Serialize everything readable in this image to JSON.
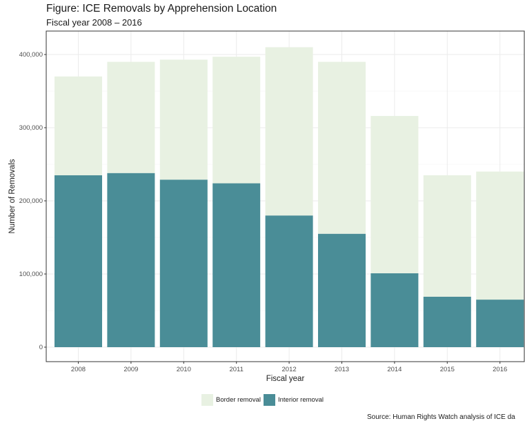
{
  "chart_data": {
    "type": "bar",
    "stacked": true,
    "title": "Figure: ICE Removals by Apprehension Location",
    "subtitle": "Fiscal year 2008 – 2016",
    "xlabel": "Fiscal year",
    "ylabel": "Number of Removals",
    "categories": [
      "2008",
      "2009",
      "2010",
      "2011",
      "2012",
      "2013",
      "2014",
      "2015",
      "2016"
    ],
    "series": [
      {
        "name": "Interior removal",
        "color": "#4a8d97",
        "values": [
          235000,
          238000,
          229000,
          224000,
          180000,
          155000,
          101000,
          69000,
          65000
        ]
      },
      {
        "name": "Border removal",
        "color": "#e8f1e2",
        "values": [
          135000,
          152000,
          164000,
          173000,
          230000,
          235000,
          215000,
          166000,
          175000
        ]
      }
    ],
    "yticks": [
      0,
      100000,
      200000,
      300000,
      400000
    ],
    "ytick_labels": [
      "0",
      "100,000",
      "200,000",
      "300,000",
      "400,000"
    ],
    "ylim": [
      0,
      430000
    ],
    "grid": true,
    "legend_position": "bottom",
    "legend_labels": [
      "Border removal",
      "Interior removal"
    ],
    "source": "Source: Human Rights Watch analysis of ICE da"
  }
}
